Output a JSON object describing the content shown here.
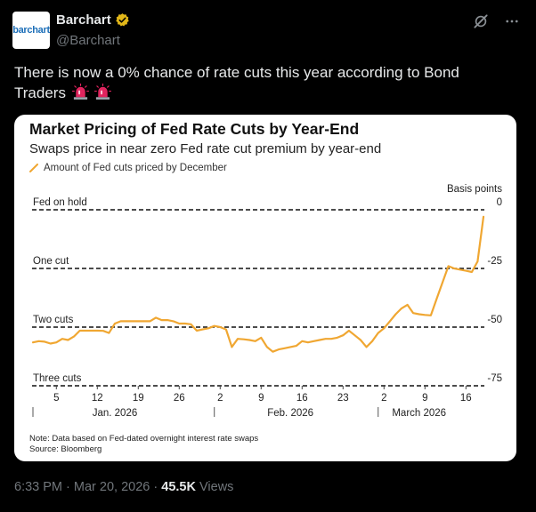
{
  "author": {
    "name": "Barchart",
    "handle": "@Barchart",
    "avatar_text": "barchart"
  },
  "tweet": {
    "text": "There is now a 0% chance of rate cuts this year according to Bond Traders"
  },
  "footer": {
    "time": "6:33 PM",
    "date": "Mar 20, 2026",
    "views_count": "45.5K",
    "views_label": "Views",
    "sep": "·"
  },
  "colors": {
    "line": "#f0a732",
    "verified": "#e2b719",
    "siren": "#e0245e"
  },
  "chart_data": {
    "type": "line",
    "title": "Market Pricing of Fed Rate Cuts by Year-End",
    "subtitle": "Swaps price in near zero Fed rate cut premium by year-end",
    "legend": [
      "Amount of Fed cuts priced by December"
    ],
    "ylabel": "Basis points",
    "ylim": [
      -75,
      0
    ],
    "y_ticks": [
      0,
      -25,
      -50,
      -75
    ],
    "y_tick_labels": [
      "0",
      "-25",
      "-50",
      "-75"
    ],
    "reference_lines": [
      {
        "label": "Fed on hold",
        "y": 0
      },
      {
        "label": "One cut",
        "y": -25
      },
      {
        "label": "Two cuts",
        "y": -50
      },
      {
        "label": "Three cuts",
        "y": -75
      }
    ],
    "x_day_labels": [
      "5",
      "12",
      "19",
      "26",
      "2",
      "9",
      "16",
      "23",
      "2",
      "9",
      "16"
    ],
    "x_month_labels": [
      "Jan. 2026",
      "Feb. 2026",
      "March 2026"
    ],
    "x_tick_days": [
      5,
      12,
      19,
      26,
      33,
      40,
      47,
      54,
      61,
      68,
      75
    ],
    "x_month_start_days": [
      1,
      32,
      60
    ],
    "x_month_label_days": [
      15,
      45,
      67
    ],
    "x_domain": [
      1,
      78
    ],
    "series": [
      {
        "values": [
          [
            1,
            -56.5
          ],
          [
            2,
            -56
          ],
          [
            3,
            -56.2
          ],
          [
            4,
            -57
          ],
          [
            5,
            -56.5
          ],
          [
            6,
            -55
          ],
          [
            7,
            -55.5
          ],
          [
            8,
            -54
          ],
          [
            9,
            -51.5
          ],
          [
            10,
            -51.5
          ],
          [
            11,
            -51.5
          ],
          [
            12,
            -51.5
          ],
          [
            13,
            -51.6
          ],
          [
            14,
            -52.5
          ],
          [
            15,
            -48.5
          ],
          [
            16,
            -47.5
          ],
          [
            17,
            -47.5
          ],
          [
            18,
            -47.5
          ],
          [
            19,
            -47.5
          ],
          [
            20,
            -47.5
          ],
          [
            21,
            -47.5
          ],
          [
            22,
            -46
          ],
          [
            23,
            -47
          ],
          [
            24,
            -47
          ],
          [
            25,
            -47.5
          ],
          [
            26,
            -48.5
          ],
          [
            27,
            -48.5
          ],
          [
            28,
            -48.8
          ],
          [
            29,
            -51.5
          ],
          [
            30,
            -51
          ],
          [
            31,
            -50.5
          ],
          [
            32,
            -49.5
          ],
          [
            33,
            -50
          ],
          [
            34,
            -51
          ],
          [
            35,
            -58.5
          ],
          [
            36,
            -55
          ],
          [
            37,
            -55.2
          ],
          [
            38,
            -55.5
          ],
          [
            39,
            -56
          ],
          [
            40,
            -54.5
          ],
          [
            41,
            -58.5
          ],
          [
            42,
            -60.5
          ],
          [
            43,
            -59.5
          ],
          [
            44,
            -59
          ],
          [
            45,
            -58.5
          ],
          [
            46,
            -58
          ],
          [
            47,
            -56
          ],
          [
            48,
            -56.5
          ],
          [
            49,
            -56
          ],
          [
            50,
            -55.5
          ],
          [
            51,
            -55
          ],
          [
            52,
            -55
          ],
          [
            53,
            -54.5
          ],
          [
            54,
            -53.5
          ],
          [
            55,
            -51.5
          ],
          [
            56,
            -53.5
          ],
          [
            57,
            -55.5
          ],
          [
            58,
            -58.5
          ],
          [
            59,
            -56
          ],
          [
            60,
            -52.5
          ],
          [
            61,
            -50.5
          ],
          [
            62,
            -47.5
          ],
          [
            63,
            -44.5
          ],
          [
            64,
            -42
          ],
          [
            65,
            -40.5
          ],
          [
            66,
            -44
          ],
          [
            67,
            -44.5
          ],
          [
            68,
            -44.8
          ],
          [
            69,
            -45
          ],
          [
            70,
            -38
          ],
          [
            71,
            -31
          ],
          [
            72,
            -24
          ],
          [
            73,
            -25
          ],
          [
            74,
            -25.5
          ],
          [
            75,
            -26
          ],
          [
            76,
            -26.5
          ],
          [
            77,
            -22
          ],
          [
            78,
            -3
          ]
        ]
      }
    ],
    "note": "Note: Data based on Fed-dated overnight interest rate swaps",
    "source": "Source: Bloomberg"
  }
}
